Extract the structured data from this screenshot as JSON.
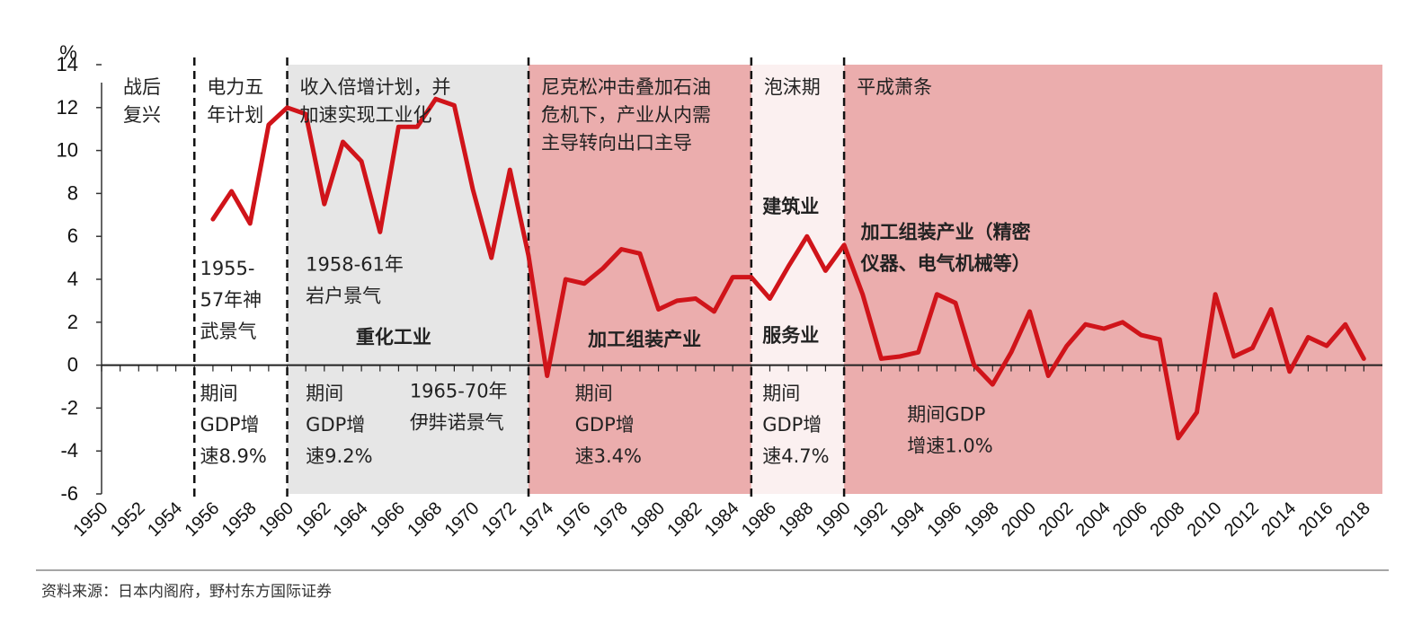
{
  "chart_data": {
    "type": "line",
    "ylabel": "%",
    "ylim": [
      -6,
      14
    ],
    "yticks": [
      14,
      12,
      10,
      8,
      6,
      4,
      2,
      0,
      -2,
      -4,
      -6
    ],
    "xlim": [
      1950,
      2019
    ],
    "xticks": [
      1950,
      1952,
      1954,
      1956,
      1958,
      1960,
      1962,
      1964,
      1966,
      1968,
      1970,
      1972,
      1974,
      1976,
      1978,
      1980,
      1982,
      1984,
      1986,
      1988,
      1990,
      1992,
      1994,
      1996,
      1998,
      2000,
      2002,
      2004,
      2006,
      2008,
      2010,
      2012,
      2014,
      2016,
      2018
    ],
    "grid": false,
    "series": [
      {
        "color": "#d0141a",
        "x": [
          1956,
          1957,
          1958,
          1959,
          1960,
          1961,
          1962,
          1963,
          1964,
          1965,
          1966,
          1967,
          1968,
          1969,
          1970,
          1971,
          1972,
          1973,
          1974,
          1975,
          1976,
          1977,
          1978,
          1979,
          1980,
          1981,
          1982,
          1983,
          1984,
          1985,
          1986,
          1987,
          1988,
          1989,
          1990,
          1991,
          1992,
          1993,
          1994,
          1995,
          1996,
          1997,
          1998,
          1999,
          2000,
          2001,
          2002,
          2003,
          2004,
          2005,
          2006,
          2007,
          2008,
          2009,
          2010,
          2011,
          2012,
          2013,
          2014,
          2015,
          2016,
          2017,
          2018
        ],
        "values": [
          6.8,
          8.1,
          6.6,
          11.2,
          12.0,
          11.7,
          7.5,
          10.4,
          9.5,
          6.2,
          11.1,
          11.1,
          12.4,
          12.1,
          8.2,
          5.0,
          9.1,
          5.1,
          -0.5,
          4.0,
          3.8,
          4.5,
          5.4,
          5.2,
          2.6,
          3.0,
          3.1,
          2.5,
          4.1,
          4.1,
          3.1,
          4.6,
          6.0,
          4.4,
          5.6,
          3.3,
          0.3,
          0.4,
          0.6,
          3.3,
          2.9,
          0.0,
          -0.9,
          0.6,
          2.5,
          -0.5,
          0.9,
          1.9,
          1.7,
          2.0,
          1.4,
          1.2,
          -3.4,
          -2.2,
          3.3,
          0.4,
          0.8,
          2.6,
          -0.3,
          1.3,
          0.9,
          1.9,
          0.3
        ]
      }
    ],
    "periods": [
      {
        "from": 1950,
        "to": 1955.0,
        "shade": "none",
        "color": "#ffffff",
        "label": [
          "战后",
          "复兴"
        ]
      },
      {
        "from": 1955.0,
        "to": 1960.0,
        "shade": "none",
        "color": "#ffffff",
        "label": [
          "电力五",
          "年计划"
        ]
      },
      {
        "from": 1960.0,
        "to": 1973.0,
        "shade": "gray",
        "color": "#e6e6e6",
        "label": [
          "收入倍增计划，并",
          "加速实现工业化"
        ]
      },
      {
        "from": 1973.0,
        "to": 1985.0,
        "shade": "red",
        "color": "#ebadad",
        "label": [
          "尼克松冲击叠加石油",
          "危机下，产业从内需",
          "主导转向出口主导"
        ]
      },
      {
        "from": 1985.0,
        "to": 1990.0,
        "shade": "light-red",
        "color": "#fbf0f0",
        "label": [
          "泡沫期"
        ]
      },
      {
        "from": 1990.0,
        "to": 2019,
        "shade": "red",
        "color": "#ebadad",
        "label": [
          "平成萧条"
        ]
      }
    ],
    "dividers": [
      1955.0,
      1960.0,
      1973.0,
      1985.0,
      1990.0
    ],
    "annotations": [
      {
        "x": 1955.3,
        "y": 4.2,
        "lines": [
          "1955-",
          "57年神",
          "武景气"
        ],
        "bold": false
      },
      {
        "x": 1961.0,
        "y": 4.4,
        "lines": [
          "1958-61年",
          "岩户景气"
        ],
        "bold": false
      },
      {
        "x": 1963.7,
        "y": 1.0,
        "lines": [
          "重化工业"
        ],
        "bold": true
      },
      {
        "x": 1976.2,
        "y": 0.9,
        "lines": [
          "加工组装产业"
        ],
        "bold": true
      },
      {
        "x": 1985.6,
        "y": 7.1,
        "lines": [
          "建筑业"
        ],
        "bold": true
      },
      {
        "x": 1985.6,
        "y": 1.1,
        "lines": [
          "服务业"
        ],
        "bold": true
      },
      {
        "x": 1990.9,
        "y": 5.9,
        "lines": [
          "加工组装产业（精密",
          "仪器、电气机械等）"
        ],
        "bold": true
      },
      {
        "x": 1966.6,
        "y": -1.5,
        "lines": [
          "1965-70年",
          "伊弉诺景气"
        ],
        "bold": false
      },
      {
        "x": 1955.3,
        "y": -1.6,
        "lines": [
          "期间",
          "GDP增",
          "速8.9%"
        ],
        "bold": false
      },
      {
        "x": 1961.0,
        "y": -1.6,
        "lines": [
          "期间",
          "GDP增",
          "速9.2%"
        ],
        "bold": false
      },
      {
        "x": 1975.5,
        "y": -1.6,
        "lines": [
          "期间",
          "GDP增",
          "速3.4%"
        ],
        "bold": false
      },
      {
        "x": 1985.6,
        "y": -1.6,
        "lines": [
          "期间",
          "GDP增",
          "速4.7%"
        ],
        "bold": false
      },
      {
        "x": 1993.4,
        "y": -2.6,
        "lines": [
          "期间GDP",
          "增速1.0%"
        ],
        "bold": false
      }
    ]
  },
  "source": "资料来源：日本内阁府，野村东方国际证券"
}
